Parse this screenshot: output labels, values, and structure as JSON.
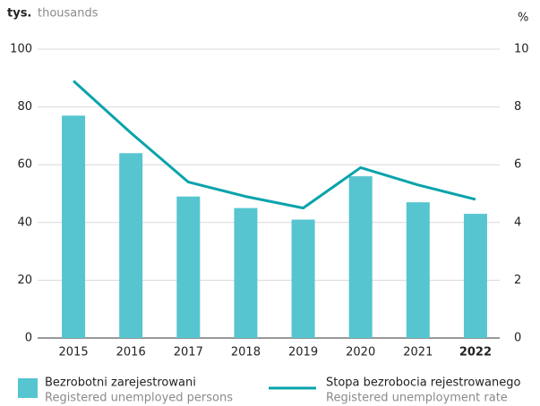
{
  "chart_data": {
    "type": "bar_line",
    "y_unit": "tys.",
    "y_unit_en": "thousands",
    "y2_unit": "%",
    "categories": [
      "2015",
      "2016",
      "2017",
      "2018",
      "2019",
      "2020",
      "2021",
      "2022"
    ],
    "highlight_category": 7,
    "series": [
      {
        "name": "Bezrobotni zarejestrowani",
        "name_en": "Registered unemployed persons",
        "type": "bar",
        "color": "#56c5d0",
        "axis": "y",
        "values": [
          77,
          64,
          49,
          45,
          41,
          56,
          47,
          43
        ]
      },
      {
        "name": "Stopa bezrobocia rejestrowanego",
        "name_en": "Registered unemployment rate",
        "type": "line",
        "color": "#0aa3ab",
        "axis": "y2",
        "values": [
          8.9,
          7.1,
          5.4,
          4.9,
          4.5,
          5.9,
          5.3,
          4.8
        ]
      }
    ],
    "ylim": [
      0,
      100
    ],
    "yticks": [
      0,
      20,
      40,
      60,
      80,
      100
    ],
    "y2lim": [
      0,
      10
    ],
    "y2ticks": [
      0,
      2,
      4,
      6,
      8,
      10
    ],
    "grid": true
  }
}
